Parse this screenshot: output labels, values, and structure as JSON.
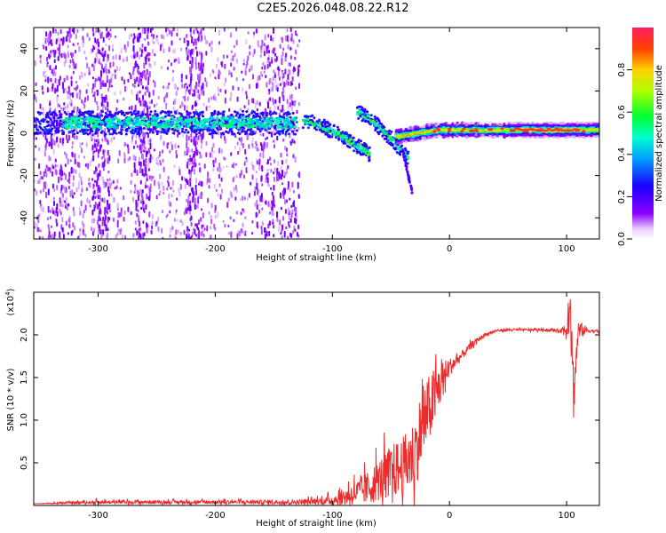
{
  "title": "C2E5.2026.048.08.22.R12",
  "chart_data": [
    {
      "type": "heatmap",
      "xlabel": "Height of straight line (km)",
      "ylabel": "Frequency (Hz)",
      "xlim": [
        -355,
        128
      ],
      "ylim": [
        -50,
        50
      ],
      "xticks": [
        -300,
        -200,
        -100,
        0,
        100
      ],
      "yticks": [
        -40,
        -20,
        0,
        20,
        40
      ],
      "colorbar": {
        "label": "Normalized spectral amplitude",
        "range": [
          0.0,
          1.0
        ],
        "ticks": [
          0.0,
          0.2,
          0.4,
          0.6,
          0.8
        ],
        "tick_labels": [
          "0.0",
          "0.2",
          "0.4",
          "0.6",
          "0.8"
        ]
      },
      "features": [
        {
          "name": "noise-background",
          "x_range": [
            -355,
            -128
          ],
          "amplitude": 0.05
        },
        {
          "name": "noise-band-dense",
          "x_range": [
            -170,
            -128
          ],
          "amplitude": 0.07
        },
        {
          "name": "main-carrier",
          "x_range": [
            -355,
            -130
          ],
          "frequency": 5,
          "amplitude": 0.35
        },
        {
          "name": "descending-branch-1",
          "x_start": -125,
          "x_end": -68,
          "f_start": 6,
          "f_end": -10,
          "amplitude": 0.5
        },
        {
          "name": "descending-branch-2",
          "x_start": -80,
          "x_end": -35,
          "f_start": 10,
          "f_end": -12,
          "amplitude": 0.5
        },
        {
          "name": "steep-tail",
          "x_start": -40,
          "x_end": -32,
          "f_start": -8,
          "f_end": -28,
          "amplitude": 0.2
        },
        {
          "name": "strong-carrier",
          "x_range": [
            -45,
            128
          ],
          "frequency": 1.5,
          "amplitude": 0.95
        }
      ]
    },
    {
      "type": "line",
      "xlabel": "Height of straight line (km)",
      "ylabel": "SNR (10 * v/v)",
      "scale_label": "(x10",
      "scale_exponent": "4",
      "scale_suffix": ")",
      "xlim": [
        -355,
        128
      ],
      "ylim": [
        0,
        2.5
      ],
      "xticks": [
        -300,
        -200,
        -100,
        0,
        100
      ],
      "yticks": [
        0.5,
        1.0,
        1.5,
        2.0
      ],
      "ytick_labels": [
        "0.5",
        "1.0",
        "1.5",
        "2.0"
      ],
      "color": "#ee2a2a",
      "x": [
        -355,
        -300,
        -200,
        -130,
        -110,
        -100,
        -90,
        -80,
        -70,
        -60,
        -50,
        -40,
        -30,
        -25,
        -20,
        -15,
        -10,
        -5,
        0,
        10,
        20,
        30,
        40,
        50,
        60,
        80,
        95,
        100,
        103,
        106,
        110,
        120,
        128
      ],
      "values": [
        0.02,
        0.04,
        0.04,
        0.04,
        0.05,
        0.06,
        0.1,
        0.15,
        0.2,
        0.3,
        0.4,
        0.45,
        0.6,
        0.85,
        1.05,
        1.2,
        1.35,
        1.5,
        1.62,
        1.75,
        1.9,
        2.0,
        2.05,
        2.06,
        2.06,
        2.06,
        2.05,
        2.07,
        2.5,
        1.3,
        2.06,
        2.05,
        2.04
      ],
      "spread": [
        0.0,
        0.03,
        0.03,
        0.04,
        0.06,
        0.08,
        0.15,
        0.2,
        0.28,
        0.35,
        0.45,
        0.5,
        0.6,
        0.65,
        0.6,
        0.55,
        0.45,
        0.3,
        0.15,
        0.08,
        0.05,
        0.03,
        0.02,
        0.02,
        0.02,
        0.02,
        0.03,
        0.2,
        0.4,
        0.45,
        0.15,
        0.03,
        0.02
      ]
    }
  ]
}
